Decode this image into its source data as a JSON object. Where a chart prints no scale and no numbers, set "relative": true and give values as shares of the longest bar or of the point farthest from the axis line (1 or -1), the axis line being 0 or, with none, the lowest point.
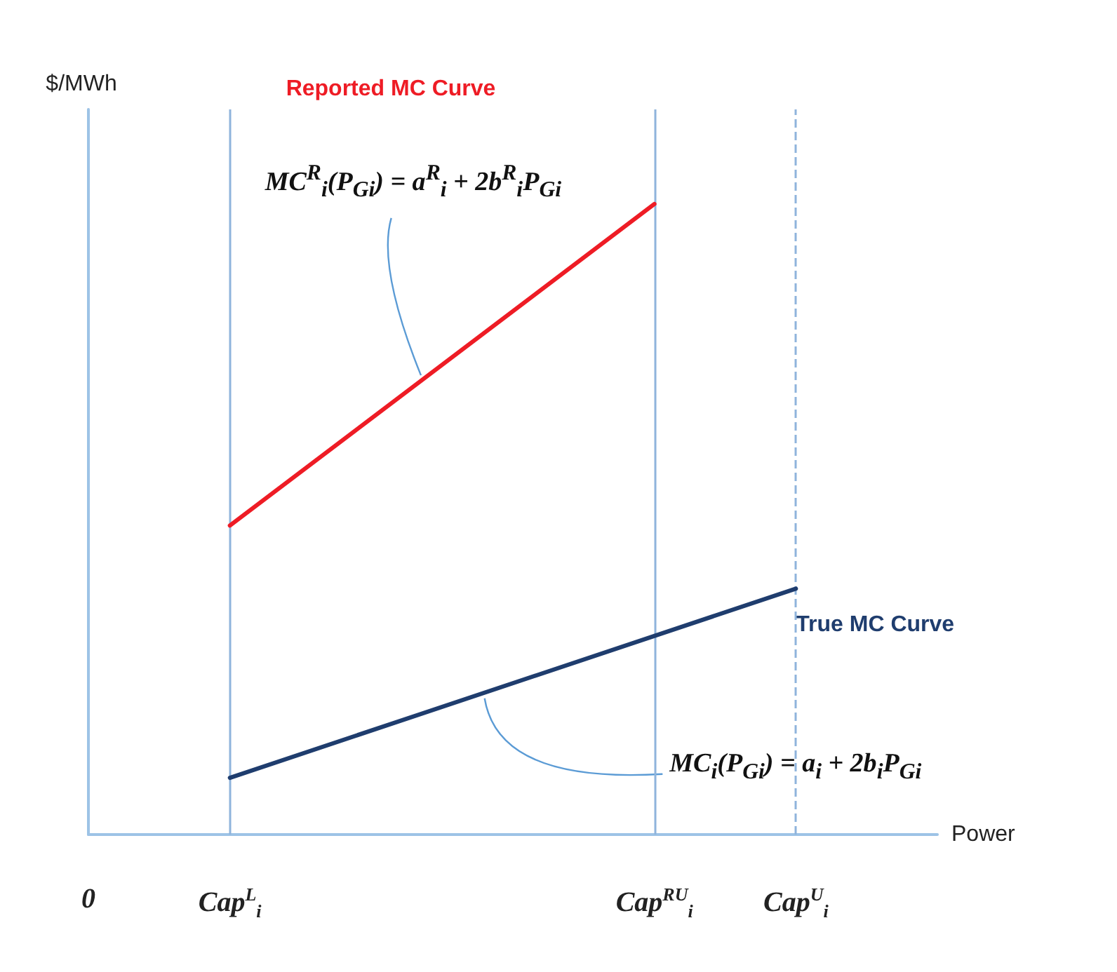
{
  "chart_data": {
    "type": "line",
    "relative": true,
    "xlabel": "Power",
    "ylabel": "$/MWh",
    "categories": [
      "0",
      null,
      "Cap$^{L}$$_{i}$",
      null,
      null,
      null,
      null,
      null,
      "Cap$^{RU}$$_{i}$",
      null,
      "Cap$^{U}$$_{i}$",
      null,
      null
    ],
    "series": [
      {
        "name": "Reported MC Curve",
        "color": "#ee1c25",
        "values": [
          null,
          null,
          0.49,
          null,
          null,
          null,
          null,
          null,
          1,
          null,
          null,
          null,
          null
        ]
      },
      {
        "name": "True MC Curve",
        "color": "#1f3d6e",
        "values": [
          null,
          null,
          0.09,
          null,
          null,
          null,
          null,
          null,
          null,
          null,
          0.39,
          null,
          null
        ]
      }
    ],
    "ref_lines": [
      {
        "axis": "x",
        "value": "Cap$^{L}$$_{i}$",
        "color": "#8fb4dc",
        "line_style": "solid"
      },
      {
        "axis": "x",
        "value": "Cap$^{RU}$$_{i}$",
        "color": "#8fb4dc",
        "line_style": "solid"
      },
      {
        "axis": "x",
        "value": "Cap$^{U}$$_{i}$",
        "color": "#8fb4dc",
        "line_style": "dashed"
      }
    ],
    "annotations": [
      "MC$^{R}$$_{i}$(P$_{Gi}$) = a$^{R}$$_{i}$ + 2b$^{R}$$_{i}$P$_{Gi}$",
      "MC$_{i}$(P$_{Gi}$) = a$_{i}$ + 2b$_{i}$P$_{Gi}$"
    ],
    "grid": false,
    "legend": false,
    "marker": "none",
    "line_style": "solid"
  }
}
